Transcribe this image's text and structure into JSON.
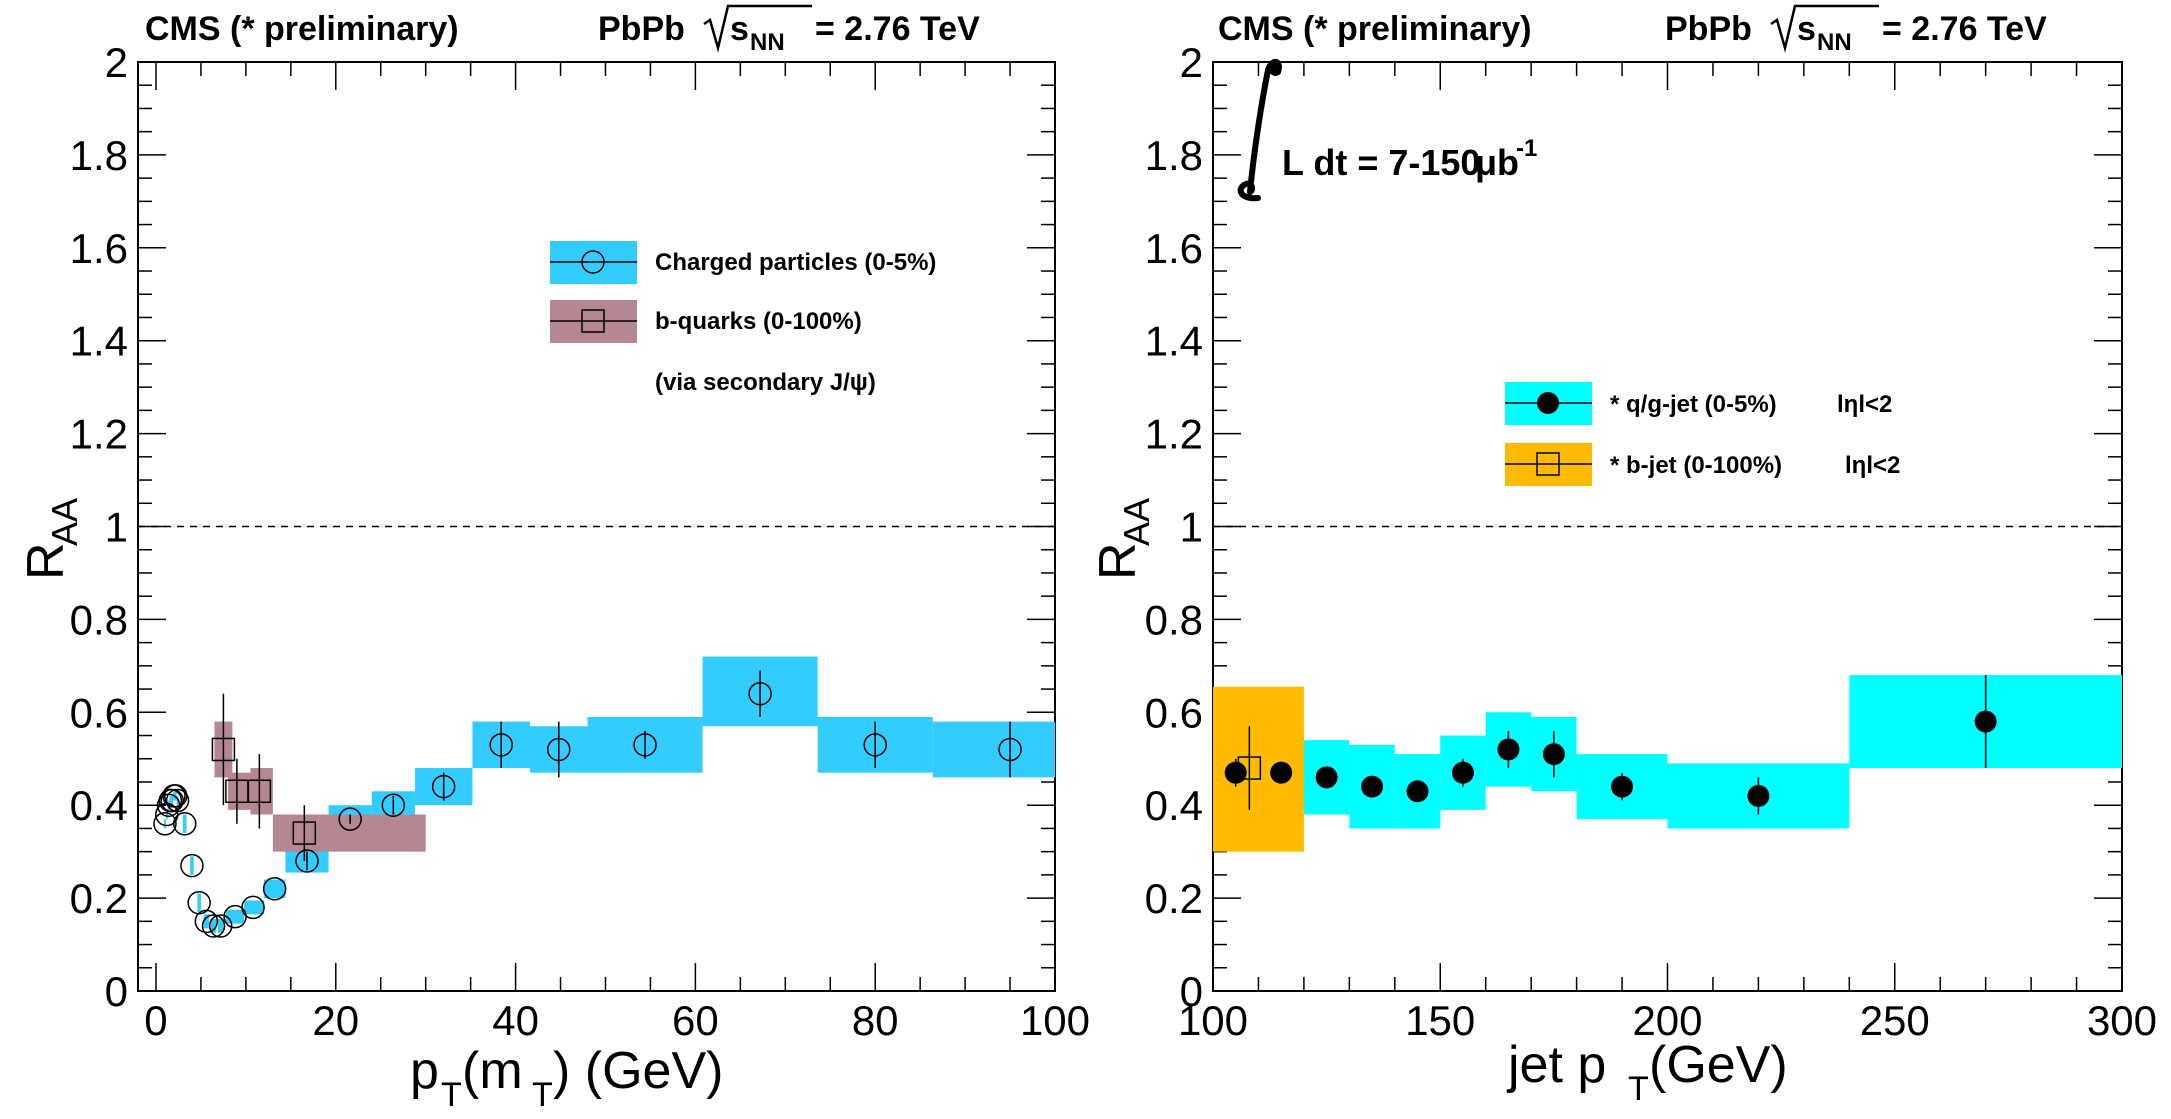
{
  "header": {
    "experiment": "CMS (* preliminary)",
    "system": "PbPb",
    "sqrt_var": "s",
    "sqrt_sub": "NN",
    "energy": "= 2.76 TeV"
  },
  "chart_data": [
    {
      "type": "scatter",
      "xlabel": "p",
      "xlabel_sub1": "T",
      "xlabel_mid": "(m",
      "xlabel_sub2": "T",
      "xlabel_end": ") (GeV)",
      "ylabel": "R",
      "ylabel_sub": "AA",
      "xlim": [
        -2,
        100
      ],
      "ylim": [
        0,
        2
      ],
      "x_ticks": [
        "0",
        "20",
        "40",
        "60",
        "80",
        "100"
      ],
      "y_ticks": [
        "0",
        "0.2",
        "0.4",
        "0.6",
        "0.8",
        "1",
        "1.2",
        "1.4",
        "1.6",
        "1.8",
        "2"
      ],
      "reference_line": 1,
      "legend": [
        {
          "label": "Charged particles (0-5%)",
          "box_color": "#33ccff",
          "marker": "open-circle"
        },
        {
          "label": "b-quarks (0-100%)",
          "box_color": "#b58793",
          "marker": "open-square"
        },
        {
          "label": "(via secondary J/ψ)",
          "box_color": "",
          "marker": ""
        }
      ],
      "series": [
        {
          "name": "Charged particles (0-5%)",
          "color": "#33ccff",
          "marker": "open-circle",
          "points": [
            {
              "x": 1.0,
              "y": 0.36,
              "xlo": 0.9,
              "xhi": 1.1,
              "syslo": 0.35,
              "syshi": 0.37,
              "err": 0.0
            },
            {
              "x": 1.2,
              "y": 0.38,
              "xlo": 1.1,
              "xhi": 1.3,
              "syslo": 0.37,
              "syshi": 0.39,
              "err": 0.0
            },
            {
              "x": 1.4,
              "y": 0.4,
              "xlo": 1.3,
              "xhi": 1.5,
              "syslo": 0.39,
              "syshi": 0.41,
              "err": 0.0
            },
            {
              "x": 1.6,
              "y": 0.41,
              "xlo": 1.5,
              "xhi": 1.7,
              "syslo": 0.4,
              "syshi": 0.42,
              "err": 0.0
            },
            {
              "x": 1.8,
              "y": 0.41,
              "xlo": 1.7,
              "xhi": 1.9,
              "syslo": 0.4,
              "syshi": 0.42,
              "err": 0.0
            },
            {
              "x": 2.0,
              "y": 0.42,
              "xlo": 1.9,
              "xhi": 2.1,
              "syslo": 0.41,
              "syshi": 0.43,
              "err": 0.0
            },
            {
              "x": 2.2,
              "y": 0.42,
              "xlo": 2.1,
              "xhi": 2.3,
              "syslo": 0.41,
              "syshi": 0.43,
              "err": 0.0
            },
            {
              "x": 2.4,
              "y": 0.41,
              "xlo": 2.3,
              "xhi": 2.5,
              "syslo": 0.4,
              "syshi": 0.42,
              "err": 0.0
            },
            {
              "x": 3.2,
              "y": 0.36,
              "xlo": 3.0,
              "xhi": 3.4,
              "syslo": 0.34,
              "syshi": 0.38,
              "err": 0.0
            },
            {
              "x": 4.0,
              "y": 0.27,
              "xlo": 3.8,
              "xhi": 4.2,
              "syslo": 0.25,
              "syshi": 0.29,
              "err": 0.0
            },
            {
              "x": 4.8,
              "y": 0.19,
              "xlo": 4.6,
              "xhi": 5.0,
              "syslo": 0.17,
              "syshi": 0.21,
              "err": 0.0
            },
            {
              "x": 5.6,
              "y": 0.15,
              "xlo": 5.3,
              "xhi": 5.9,
              "syslo": 0.135,
              "syshi": 0.165,
              "err": 0.0
            },
            {
              "x": 6.4,
              "y": 0.14,
              "xlo": 6.1,
              "xhi": 6.7,
              "syslo": 0.125,
              "syshi": 0.155,
              "err": 0.0
            },
            {
              "x": 7.2,
              "y": 0.14,
              "xlo": 6.9,
              "xhi": 7.5,
              "syslo": 0.125,
              "syshi": 0.155,
              "err": 0.0
            },
            {
              "x": 8.8,
              "y": 0.16,
              "xlo": 7.8,
              "xhi": 9.8,
              "syslo": 0.145,
              "syshi": 0.175,
              "err": 0.0
            },
            {
              "x": 10.8,
              "y": 0.18,
              "xlo": 9.8,
              "xhi": 12.0,
              "syslo": 0.165,
              "syshi": 0.195,
              "err": 0.0
            },
            {
              "x": 13.2,
              "y": 0.22,
              "xlo": 12.0,
              "xhi": 14.4,
              "syslo": 0.2,
              "syshi": 0.24,
              "err": 0.0
            },
            {
              "x": 16.8,
              "y": 0.28,
              "xlo": 14.4,
              "xhi": 19.2,
              "syslo": 0.255,
              "syshi": 0.305,
              "err": 0.02
            },
            {
              "x": 21.6,
              "y": 0.37,
              "xlo": 19.2,
              "xhi": 24.0,
              "syslo": 0.34,
              "syshi": 0.4,
              "err": 0.01
            },
            {
              "x": 26.4,
              "y": 0.4,
              "xlo": 24.0,
              "xhi": 28.8,
              "syslo": 0.37,
              "syshi": 0.43,
              "err": 0.02
            },
            {
              "x": 32.0,
              "y": 0.44,
              "xlo": 28.8,
              "xhi": 35.2,
              "syslo": 0.4,
              "syshi": 0.48,
              "err": 0.03
            },
            {
              "x": 38.4,
              "y": 0.53,
              "xlo": 35.2,
              "xhi": 41.6,
              "syslo": 0.48,
              "syshi": 0.58,
              "err": 0.05
            },
            {
              "x": 44.8,
              "y": 0.52,
              "xlo": 41.6,
              "xhi": 48.0,
              "syslo": 0.47,
              "syshi": 0.57,
              "err": 0.06
            },
            {
              "x": 54.4,
              "y": 0.53,
              "xlo": 48.0,
              "xhi": 60.8,
              "syslo": 0.47,
              "syshi": 0.59,
              "err": 0.03
            },
            {
              "x": 67.2,
              "y": 0.64,
              "xlo": 60.8,
              "xhi": 73.6,
              "syslo": 0.57,
              "syshi": 0.72,
              "err": 0.05
            },
            {
              "x": 80.0,
              "y": 0.53,
              "xlo": 73.6,
              "xhi": 86.4,
              "syslo": 0.47,
              "syshi": 0.59,
              "err": 0.05
            },
            {
              "x": 95.0,
              "y": 0.52,
              "xlo": 86.4,
              "xhi": 103.6,
              "syslo": 0.46,
              "syshi": 0.58,
              "err": 0.06
            }
          ]
        },
        {
          "name": "b-quarks (0-100%)",
          "color": "#b58793",
          "marker": "open-square",
          "points": [
            {
              "x": 7.5,
              "y": 0.52,
              "xlo": 6.5,
              "xhi": 8.5,
              "syslo": 0.46,
              "syshi": 0.58,
              "err": 0.12
            },
            {
              "x": 9.0,
              "y": 0.43,
              "xlo": 8.0,
              "xhi": 11.0,
              "syslo": 0.39,
              "syshi": 0.47,
              "err": 0.07
            },
            {
              "x": 11.5,
              "y": 0.43,
              "xlo": 10.5,
              "xhi": 13.0,
              "syslo": 0.38,
              "syshi": 0.48,
              "err": 0.08
            },
            {
              "x": 16.5,
              "y": 0.34,
              "xlo": 13.0,
              "xhi": 30.0,
              "syslo": 0.3,
              "syshi": 0.38,
              "err": 0.06
            }
          ]
        }
      ]
    },
    {
      "type": "scatter",
      "xlabel": "jet p",
      "xlabel_sub": "T",
      "xlabel_end": " (GeV)",
      "ylabel": "R",
      "ylabel_sub": "AA",
      "xlim": [
        100,
        300
      ],
      "ylim": [
        0,
        2
      ],
      "x_ticks": [
        "100",
        "150",
        "200",
        "250",
        "300"
      ],
      "y_ticks": [
        "0",
        "0.2",
        "0.4",
        "0.6",
        "0.8",
        "1",
        "1.2",
        "1.4",
        "1.6",
        "1.8",
        "2"
      ],
      "reference_line": 1,
      "annotation": {
        "text": "L dt = 7-150 ",
        "unit": "μb",
        "exponent": "-1"
      },
      "legend": [
        {
          "label": "* q/g-jet (0-5%)",
          "extra": "lηl<2",
          "box_color": "#00ffff",
          "marker": "filled-circle"
        },
        {
          "label": "* b-jet (0-100%)",
          "extra": "lηl<2",
          "box_color": "#ffbb00",
          "marker": "open-square"
        }
      ],
      "series": [
        {
          "name": "* q/g-jet (0-5%)",
          "color": "#00ffff",
          "marker": "filled-circle",
          "points": [
            {
              "x": 105,
              "y": 0.47,
              "xlo": 100,
              "xhi": 110,
              "syslo": 0.4,
              "syshi": 0.54,
              "err": 0.03
            },
            {
              "x": 115,
              "y": 0.47,
              "xlo": 110,
              "xhi": 120,
              "syslo": 0.4,
              "syshi": 0.54,
              "err": 0.02
            },
            {
              "x": 125,
              "y": 0.46,
              "xlo": 120,
              "xhi": 130,
              "syslo": 0.38,
              "syshi": 0.54,
              "err": 0.02
            },
            {
              "x": 135,
              "y": 0.44,
              "xlo": 130,
              "xhi": 140,
              "syslo": 0.35,
              "syshi": 0.53,
              "err": 0.02
            },
            {
              "x": 145,
              "y": 0.43,
              "xlo": 140,
              "xhi": 150,
              "syslo": 0.35,
              "syshi": 0.51,
              "err": 0.02
            },
            {
              "x": 155,
              "y": 0.47,
              "xlo": 150,
              "xhi": 160,
              "syslo": 0.39,
              "syshi": 0.55,
              "err": 0.03
            },
            {
              "x": 165,
              "y": 0.52,
              "xlo": 160,
              "xhi": 170,
              "syslo": 0.44,
              "syshi": 0.6,
              "err": 0.04
            },
            {
              "x": 175,
              "y": 0.51,
              "xlo": 170,
              "xhi": 180,
              "syslo": 0.43,
              "syshi": 0.59,
              "err": 0.05
            },
            {
              "x": 190,
              "y": 0.44,
              "xlo": 180,
              "xhi": 200,
              "syslo": 0.37,
              "syshi": 0.51,
              "err": 0.03
            },
            {
              "x": 220,
              "y": 0.42,
              "xlo": 200,
              "xhi": 240,
              "syslo": 0.35,
              "syshi": 0.49,
              "err": 0.04
            },
            {
              "x": 270,
              "y": 0.58,
              "xlo": 240,
              "xhi": 300,
              "syslo": 0.48,
              "syshi": 0.68,
              "err": 0.1
            }
          ]
        },
        {
          "name": "* b-jet (0-100%)",
          "color": "#ffbb00",
          "marker": "open-square",
          "points": [
            {
              "x": 108,
              "y": 0.48,
              "xlo": 100,
              "xhi": 120,
              "syslo": 0.3,
              "syshi": 0.655,
              "err": 0.09
            }
          ]
        }
      ]
    }
  ]
}
